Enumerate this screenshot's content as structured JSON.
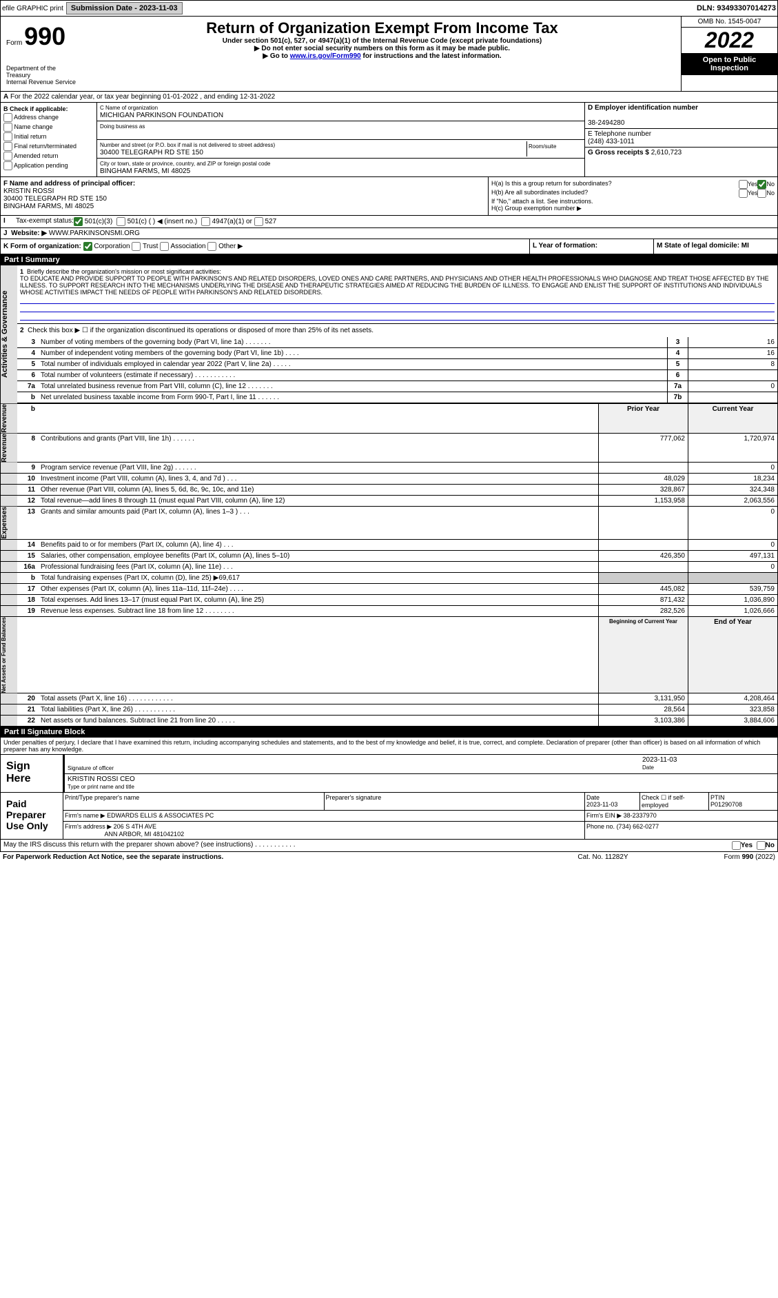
{
  "topbar": {
    "efile": "efile GRAPHIC print",
    "submission_label": "Submission Date - 2023-11-03",
    "dln": "DLN: 93493307014273"
  },
  "header": {
    "form_prefix": "Form",
    "form_no": "990",
    "dept": "Department of the Treasury",
    "irs": "Internal Revenue Service",
    "title": "Return of Organization Exempt From Income Tax",
    "sub1": "Under section 501(c), 527, or 4947(a)(1) of the Internal Revenue Code (except private foundations)",
    "sub2": "▶ Do not enter social security numbers on this form as it may be made public.",
    "sub3_pre": "▶ Go to ",
    "sub3_link": "www.irs.gov/Form990",
    "sub3_post": " for instructions and the latest information.",
    "omb": "OMB No. 1545-0047",
    "year": "2022",
    "open": "Open to Public Inspection"
  },
  "line_a": "For the 2022 calendar year, or tax year beginning 01-01-2022   , and ending 12-31-2022",
  "col_b": {
    "header": "B Check if applicable:",
    "addr": "Address change",
    "name": "Name change",
    "initial": "Initial return",
    "final": "Final return/terminated",
    "amended": "Amended return",
    "app": "Application pending"
  },
  "org": {
    "name_label": "C Name of organization",
    "name": "MICHIGAN PARKINSON FOUNDATION",
    "dba_label": "Doing business as",
    "addr_label": "Number and street (or P.O. box if mail is not delivered to street address)",
    "addr": "30400 TELEGRAPH RD STE 150",
    "room_label": "Room/suite",
    "city_label": "City or town, state or province, country, and ZIP or foreign postal code",
    "city": "BINGHAM FARMS, MI  48025"
  },
  "col_d": {
    "ein_label": "D Employer identification number",
    "ein": "38-2494280",
    "phone_label": "E Telephone number",
    "phone": "(248) 433-1011",
    "gross_label": "G Gross receipts $",
    "gross": "2,610,723"
  },
  "officer": {
    "label": "F  Name and address of principal officer:",
    "name": "KRISTIN ROSSI",
    "addr1": "30400 TELEGRAPH RD STE 150",
    "addr2": "BINGHAM FARMS, MI  48025"
  },
  "h": {
    "ha_label": "H(a)  Is this a group return for subordinates?",
    "hb_label": "H(b)  Are all subordinates included?",
    "hb_note": "If \"No,\" attach a list. See instructions.",
    "hc_label": "H(c)  Group exemption number ▶",
    "yes": "Yes",
    "no": "No"
  },
  "tax_status": {
    "label": "Tax-exempt status:",
    "s501c3": "501(c)(3)",
    "s501c": "501(c) (  ) ◀ (insert no.)",
    "s4947": "4947(a)(1) or",
    "s527": "527"
  },
  "website": {
    "label": "Website: ▶",
    "val": "WWW.PARKINSONSMI.ORG"
  },
  "k": {
    "label": "K Form of organization:",
    "corp": "Corporation",
    "trust": "Trust",
    "assoc": "Association",
    "other": "Other ▶"
  },
  "l": {
    "label": "L Year of formation:"
  },
  "m": {
    "label": "M State of legal domicile: MI"
  },
  "part1": {
    "header": "Part I      Summary",
    "side1": "Activities & Governance",
    "side2": "Revenue",
    "side3": "Expenses",
    "side4": "Net Assets or Fund Balances",
    "l1_label": "Briefly describe the organization's mission or most significant activities:",
    "l1": "TO EDUCATE AND PROVIDE SUPPORT TO PEOPLE WITH PARKINSON'S AND RELATED DISORDERS, LOVED ONES AND CARE PARTNERS, AND PHYSICIANS AND OTHER HEALTH PROFESSIONALS WHO DIAGNOSE AND TREAT THOSE AFFECTED BY THE ILLNESS. TO SUPPORT RESEARCH INTO THE MECHANISMS UNDERLYING THE DISEASE AND THERAPEUTIC STRATEGIES AIMED AT REDUCING THE BURDEN OF ILLNESS. TO ENGAGE AND ENLIST THE SUPPORT OF INSTITUTIONS AND INDIVIDUALS WHOSE ACTIVITIES IMPACT THE NEEDS OF PEOPLE WITH PARKINSON'S AND RELATED DISORDERS.",
    "l2": "Check this box ▶ ☐ if the organization discontinued its operations or disposed of more than 25% of its net assets.",
    "rows": [
      {
        "n": "3",
        "d": "Number of voting members of the governing body (Part VI, line 1a) . . . . . . .",
        "b": "3",
        "v": "16"
      },
      {
        "n": "4",
        "d": "Number of independent voting members of the governing body (Part VI, line 1b) . . . .",
        "b": "4",
        "v": "16"
      },
      {
        "n": "5",
        "d": "Total number of individuals employed in calendar year 2022 (Part V, line 2a) . . . . .",
        "b": "5",
        "v": "8"
      },
      {
        "n": "6",
        "d": "Total number of volunteers (estimate if necessary) . . . . . . . . . . .",
        "b": "6",
        "v": ""
      },
      {
        "n": "7a",
        "d": "Total unrelated business revenue from Part VIII, column (C), line 12 . . . . . . .",
        "b": "7a",
        "v": "0"
      },
      {
        "n": "b",
        "d": "Net unrelated business taxable income from Form 990-T, Part I, line 11 . . . . . .",
        "b": "7b",
        "v": ""
      }
    ],
    "py_label": "Prior Year",
    "cy_label": "Current Year",
    "rev_rows": [
      {
        "n": "8",
        "d": "Contributions and grants (Part VIII, line 1h) . . . . . .",
        "py": "777,062",
        "cy": "1,720,974"
      },
      {
        "n": "9",
        "d": "Program service revenue (Part VIII, line 2g) . . . . . .",
        "py": "",
        "cy": "0"
      },
      {
        "n": "10",
        "d": "Investment income (Part VIII, column (A), lines 3, 4, and 7d ) . . .",
        "py": "48,029",
        "cy": "18,234"
      },
      {
        "n": "11",
        "d": "Other revenue (Part VIII, column (A), lines 5, 6d, 8c, 9c, 10c, and 11e)",
        "py": "328,867",
        "cy": "324,348"
      },
      {
        "n": "12",
        "d": "Total revenue—add lines 8 through 11 (must equal Part VIII, column (A), line 12)",
        "py": "1,153,958",
        "cy": "2,063,556"
      }
    ],
    "exp_rows": [
      {
        "n": "13",
        "d": "Grants and similar amounts paid (Part IX, column (A), lines 1–3 ) . . .",
        "py": "",
        "cy": "0"
      },
      {
        "n": "14",
        "d": "Benefits paid to or for members (Part IX, column (A), line 4) . . .",
        "py": "",
        "cy": "0"
      },
      {
        "n": "15",
        "d": "Salaries, other compensation, employee benefits (Part IX, column (A), lines 5–10)",
        "py": "426,350",
        "cy": "497,131"
      },
      {
        "n": "16a",
        "d": "Professional fundraising fees (Part IX, column (A), line 11e) . . .",
        "py": "",
        "cy": "0"
      },
      {
        "n": "b",
        "d": "Total fundraising expenses (Part IX, column (D), line 25) ▶69,617",
        "py": "shade",
        "cy": "shade"
      },
      {
        "n": "17",
        "d": "Other expenses (Part IX, column (A), lines 11a–11d, 11f–24e) . . . .",
        "py": "445,082",
        "cy": "539,759"
      },
      {
        "n": "18",
        "d": "Total expenses. Add lines 13–17 (must equal Part IX, column (A), line 25)",
        "py": "871,432",
        "cy": "1,036,890"
      },
      {
        "n": "19",
        "d": "Revenue less expenses. Subtract line 18 from line 12 . . . . . . . .",
        "py": "282,526",
        "cy": "1,026,666"
      }
    ],
    "by_label": "Beginning of Current Year",
    "ey_label": "End of Year",
    "net_rows": [
      {
        "n": "20",
        "d": "Total assets (Part X, line 16) . . . . . . . . . . . .",
        "py": "3,131,950",
        "cy": "4,208,464"
      },
      {
        "n": "21",
        "d": "Total liabilities (Part X, line 26) . . . . . . . . . . .",
        "py": "28,564",
        "cy": "323,858"
      },
      {
        "n": "22",
        "d": "Net assets or fund balances. Subtract line 21 from line 20 . . . . .",
        "py": "3,103,386",
        "cy": "3,884,606"
      }
    ]
  },
  "part2": {
    "header": "Part II     Signature Block",
    "perjury": "Under penalties of perjury, I declare that I have examined this return, including accompanying schedules and statements, and to the best of my knowledge and belief, it is true, correct, and complete. Declaration of preparer (other than officer) is based on all information of which preparer has any knowledge.",
    "sign_here": "Sign Here",
    "sig_officer": "Signature of officer",
    "sig_date": "2023-11-03",
    "date_label": "Date",
    "officer_name": "KRISTIN ROSSI CEO",
    "type_name": "Type or print name and title",
    "paid": "Paid Preparer Use Only",
    "prep_name_label": "Print/Type preparer's name",
    "prep_sig_label": "Preparer's signature",
    "prep_date": "2023-11-03",
    "check_self": "Check ☐ if self-employed",
    "ptin_label": "PTIN",
    "ptin": "P01290708",
    "firm_name_label": "Firm's name      ▶",
    "firm_name": "EDWARDS ELLIS & ASSOCIATES PC",
    "firm_ein_label": "Firm's EIN ▶",
    "firm_ein": "38-2337970",
    "firm_addr_label": "Firm's address ▶",
    "firm_addr": "206 S 4TH AVE",
    "firm_city": "ANN ARBOR, MI  481042102",
    "firm_phone_label": "Phone no.",
    "firm_phone": "(734) 662-0277",
    "discuss": "May the IRS discuss this return with the preparer shown above? (see instructions)  . . . . . . . . . . .",
    "yes": "Yes",
    "no": "No"
  },
  "footer": {
    "pra": "For Paperwork Reduction Act Notice, see the separate instructions.",
    "cat": "Cat. No. 11282Y",
    "form": "Form 990 (2022)"
  }
}
